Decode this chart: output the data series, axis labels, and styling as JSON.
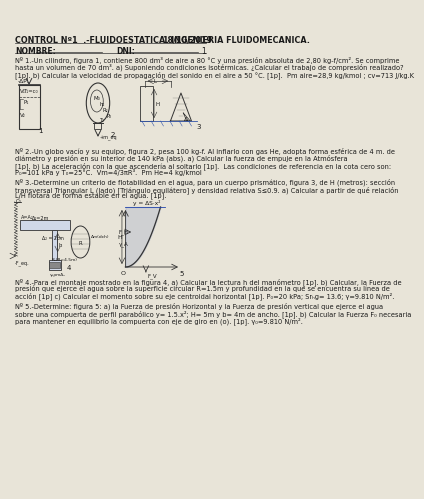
{
  "background_color": "#e8e4d8",
  "text_color": "#1a1a1a",
  "line_color": "#333333",
  "header_text": "CONTROL Nº1  .-FLUIDOESTATICA. INGENIERIA FLUIDOMECANICA.",
  "date": "18/10/2019",
  "nombre_label": "NOMBRE:",
  "dni_label": "DNI:",
  "page_num": "1",
  "problem1_line1": "Nº 1.-Un cilindro, figura 1, contiene 800 dm³ de aire a 80 °C y una presión absoluta de 2,80 kg-f/cm². Se comprime",
  "problem1_line2": "hasta un volumen de 70 dm³. a) Suponiendo condiciones isotérmicas. ¿Calcular el trabajo de compresión realizado?",
  "problem1_line3": "[1p]. b) Calcular la velocidad de propagación del sonido en el aire a 50 °C. [1p].  Pm aire=28,9 kg/kmol ; cv=713 J/kg.K",
  "problem2_line1": "Nº 2.-Un globo vacío y su equipo, figura 2, pesa 100 kg-f. Al inflarlo con gas He, adopta forma esférica de 4 m. de",
  "problem2_line2": "diámetro y presión en su interior de 140 kPa (abs). a) Calcular la fuerza de empuje en la Atmósfera",
  "problem2_line3": "[1p]. b) La aceleración con la que ascendería al soltarlo [1p].  Las condiciones de referencia en la cota cero son:",
  "problem2_line4": "P₀=101 kPa y T₀=25°C.  Vm=4/3πR³.  Pm He=4 kg/kmol",
  "problem3_line1": "Nº 3.-Determine un criterio de flotabilidad en el agua, para un cuerpo prismático, figura 3, de H (metros): sección",
  "problem3_line2": "transversal Triangular L (lado) [Triángulo equilátero] y densidad relativa S≤0.9. a) Calcular a partir de qué relación",
  "problem3_line3": "L/H flotará de forma estable en el agua. [1p].",
  "problem4_line1": "Nº 4.-Para el montaje mostrado en la figura 4, a) Calcular la lectura h del manómetro [1p]. b) Calcular, la Fuerza de",
  "problem4_line2": "presión que ejerce el agua sobre la superficie circular R=1.5m y profundidad en la que se encuentra su línea de",
  "problem4_line3": "acción [1p] c) Calcular el momento sobre su eje centroidal horizontal [1p]. P₀=20 kPa; Srₕg= 13.6; γ=9.810 N/m².",
  "problem5_line1": "Nº 5.-Determine: figura 5: a) la Fuerza de presión Horizontal y la Fuerza de presión vertical que ejerce el agua",
  "problem5_line2": "sobre una compuerta de perfil parabólico y= 1.5.x²; H= 5m y b= 4m de ancho. [1p]. b) Calcular la Fuerza F₀ necesaria",
  "problem5_line3": "para mantener en equilibrio la compuerta con eje de giro en (o). [1p]. γ₀=9.810 N/m²."
}
